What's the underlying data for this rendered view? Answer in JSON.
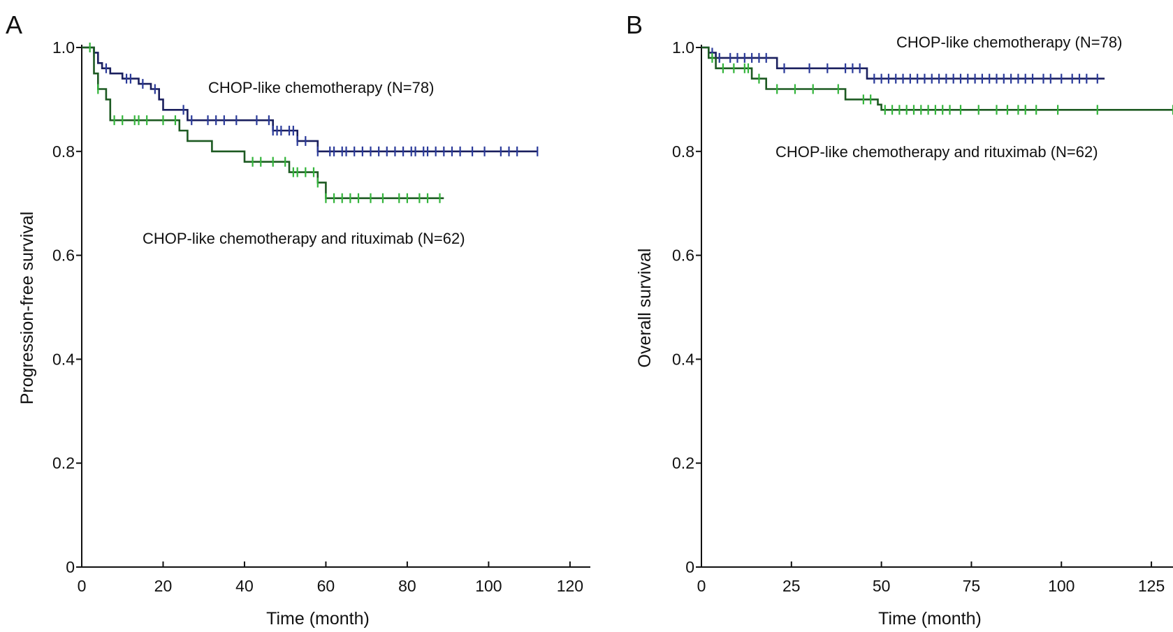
{
  "colors": {
    "chop": "#1a1f5e",
    "chop_censor": "#2a3a9a",
    "chop_r": "#1d5a22",
    "chop_r_censor": "#33b53b",
    "axis": "#111111"
  },
  "chart_data": [
    {
      "type": "line",
      "panel_label": "A",
      "xlabel": "Time (month)",
      "ylabel": "Progression-free survival",
      "xlim": [
        0,
        125
      ],
      "ylim": [
        0,
        1.0
      ],
      "x_ticks": [
        0,
        20,
        40,
        60,
        80,
        100,
        120
      ],
      "x_tick_labels": [
        "0",
        "20",
        "40",
        "60",
        "80",
        "100",
        "120"
      ],
      "y_ticks": [
        0,
        0.2,
        0.4,
        0.6,
        0.8,
        1.0
      ],
      "y_tick_labels": [
        "0",
        "0.2",
        "0.4",
        "0.6",
        "0.8",
        "1.0"
      ],
      "series": [
        {
          "name": "CHOP-like chemotherapy (N=78)",
          "color_key": "chop",
          "steps": [
            [
              0,
              1.0
            ],
            [
              3,
              0.99
            ],
            [
              4,
              0.97
            ],
            [
              5,
              0.96
            ],
            [
              7,
              0.95
            ],
            [
              10,
              0.94
            ],
            [
              14,
              0.93
            ],
            [
              17,
              0.92
            ],
            [
              19,
              0.9
            ],
            [
              20,
              0.88
            ],
            [
              26,
              0.86
            ],
            [
              47,
              0.84
            ],
            [
              53,
              0.82
            ],
            [
              58,
              0.8
            ],
            [
              112,
              0.8
            ]
          ],
          "censor_x": [
            3,
            6,
            11,
            12,
            15,
            18,
            25,
            27,
            31,
            33,
            35,
            38,
            43,
            46,
            47,
            48,
            49,
            51,
            52,
            53,
            55,
            58,
            61,
            62,
            64,
            65,
            67,
            69,
            71,
            73,
            75,
            77,
            79,
            81,
            82,
            84,
            85,
            87,
            89,
            91,
            93,
            96,
            99,
            103,
            105,
            107,
            112
          ]
        },
        {
          "name": "CHOP-like chemotherapy and rituximab (N=62)",
          "color_key": "chop_r",
          "steps": [
            [
              0,
              1.0
            ],
            [
              3,
              0.95
            ],
            [
              4,
              0.92
            ],
            [
              6,
              0.9
            ],
            [
              7,
              0.86
            ],
            [
              24,
              0.84
            ],
            [
              26,
              0.82
            ],
            [
              32,
              0.8
            ],
            [
              40,
              0.78
            ],
            [
              51,
              0.76
            ],
            [
              58,
              0.74
            ],
            [
              60,
              0.71
            ],
            [
              89,
              0.71
            ]
          ],
          "censor_x": [
            2,
            4,
            8,
            10,
            13,
            14,
            16,
            20,
            23,
            42,
            44,
            47,
            50,
            52,
            53,
            55,
            57,
            58,
            60,
            62,
            64,
            66,
            68,
            71,
            74,
            78,
            80,
            83,
            85,
            88
          ]
        }
      ],
      "annotations": [
        {
          "text": "CHOP-like chemotherapy (N=78)",
          "series": 0
        },
        {
          "text": "CHOP-like chemotherapy and rituximab (N=62)",
          "series": 1
        }
      ]
    },
    {
      "type": "line",
      "panel_label": "B",
      "xlabel": "Time (month)",
      "ylabel": "Overall survival",
      "xlim": [
        0,
        131
      ],
      "ylim": [
        0,
        1.0
      ],
      "x_ticks": [
        0,
        25,
        50,
        75,
        100,
        125
      ],
      "x_tick_labels": [
        "0",
        "25",
        "50",
        "75",
        "100",
        "125"
      ],
      "y_ticks": [
        0,
        0.2,
        0.4,
        0.6,
        0.8,
        1.0
      ],
      "y_tick_labels": [
        "0",
        "0.2",
        "0.4",
        "0.6",
        "0.8",
        "1.0"
      ],
      "series": [
        {
          "name": "CHOP-like chemotherapy (N=78)",
          "color_key": "chop",
          "steps": [
            [
              0,
              1.0
            ],
            [
              2,
              0.99
            ],
            [
              4,
              0.98
            ],
            [
              21,
              0.96
            ],
            [
              46,
              0.94
            ],
            [
              112,
              0.94
            ]
          ],
          "censor_x": [
            3,
            5,
            8,
            10,
            12,
            14,
            16,
            18,
            23,
            30,
            35,
            40,
            42,
            44,
            48,
            50,
            52,
            54,
            56,
            58,
            60,
            62,
            64,
            66,
            68,
            70,
            72,
            74,
            76,
            78,
            80,
            82,
            84,
            86,
            88,
            90,
            92,
            95,
            97,
            100,
            103,
            105,
            107,
            110
          ]
        },
        {
          "name": "CHOP-like chemotherapy and rituximab (N=62)",
          "color_key": "chop_r",
          "steps": [
            [
              0,
              1.0
            ],
            [
              2,
              0.98
            ],
            [
              4,
              0.96
            ],
            [
              14,
              0.94
            ],
            [
              18,
              0.92
            ],
            [
              40,
              0.9
            ],
            [
              49,
              0.89
            ],
            [
              50,
              0.88
            ],
            [
              131,
              0.88
            ]
          ],
          "censor_x": [
            3,
            6,
            9,
            12,
            13,
            16,
            21,
            26,
            31,
            38,
            45,
            47,
            51,
            53,
            55,
            57,
            59,
            61,
            63,
            65,
            67,
            69,
            72,
            77,
            82,
            85,
            88,
            90,
            93,
            99,
            110,
            131
          ]
        }
      ],
      "annotations": [
        {
          "text": "CHOP-like chemotherapy (N=78)",
          "series": 0
        },
        {
          "text": "CHOP-like chemotherapy and rituximab (N=62)",
          "series": 1
        }
      ]
    }
  ]
}
